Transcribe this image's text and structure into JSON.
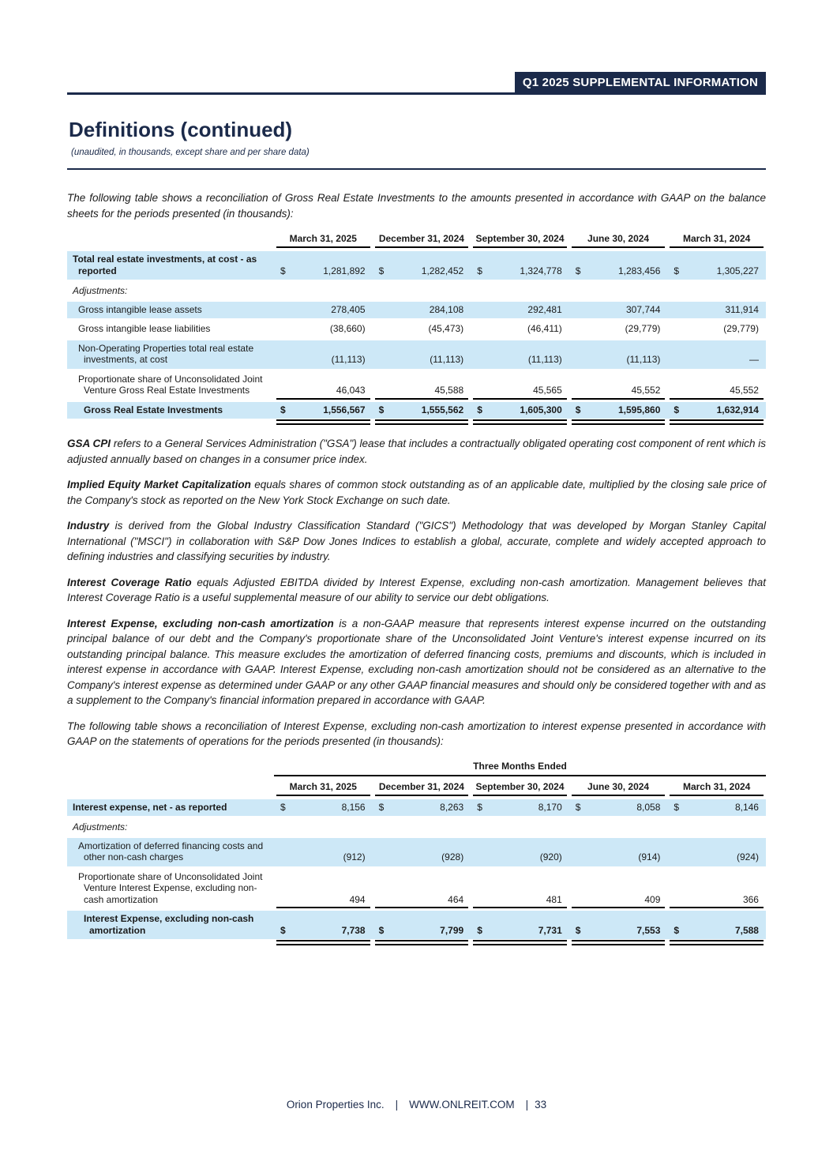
{
  "colors": {
    "navy": "#1b2a4a",
    "row_highlight": "#cde8f7"
  },
  "header": {
    "badge": "Q1 2025 SUPPLEMENTAL INFORMATION"
  },
  "title": "Definitions (continued)",
  "subtitle": "(unaudited, in thousands, except share and per share data)",
  "intro1": "The following table shows a reconciliation of Gross Real Estate Investments to the amounts presented in accordance with GAAP on the balance sheets for the periods presented (in thousands):",
  "table1": {
    "currency": "$",
    "columns": [
      "March 31, 2025",
      "December 31, 2024",
      "September 30, 2024",
      "June 30, 2024",
      "March 31, 2024"
    ],
    "rows": [
      {
        "label": "Total real estate investments, at cost - as reported",
        "bold": true,
        "dollar": true,
        "bg": "blue",
        "indent": 1,
        "values": [
          "1,281,892",
          "1,282,452",
          "1,324,778",
          "1,283,456",
          "1,305,227"
        ]
      },
      {
        "label": "Adjustments:",
        "section": true,
        "bg": "white"
      },
      {
        "label": "Gross intangible lease assets",
        "bg": "blue",
        "indent": 2,
        "values": [
          "278,405",
          "284,108",
          "292,481",
          "307,744",
          "311,914"
        ]
      },
      {
        "label": "Gross intangible lease liabilities",
        "bg": "white",
        "indent": 2,
        "values": [
          "(38,660)",
          "(45,473)",
          "(46,411)",
          "(29,779)",
          "(29,779)"
        ]
      },
      {
        "label": "Non-Operating Properties total real estate investments, at cost",
        "bg": "blue",
        "indent": 2,
        "values": [
          "(11,113)",
          "(11,113)",
          "(11,113)",
          "(11,113)",
          "—"
        ]
      },
      {
        "label": "Proportionate share of Unconsolidated Joint Venture Gross Real Estate Investments",
        "bg": "white",
        "indent": 2,
        "rule_below": true,
        "values": [
          "46,043",
          "45,588",
          "45,565",
          "45,552",
          "45,552"
        ]
      },
      {
        "label": "Gross Real Estate Investments",
        "bold": true,
        "dollar": true,
        "bg": "blue",
        "indent": 3,
        "total": true,
        "values": [
          "1,556,567",
          "1,555,562",
          "1,605,300",
          "1,595,860",
          "1,632,914"
        ]
      }
    ]
  },
  "definitions": [
    {
      "term": "GSA CPI",
      "text": "refers to a General Services Administration (\"GSA\") lease that includes a contractually obligated operating cost component of rent which is adjusted annually based on changes in a consumer price index."
    },
    {
      "term": "Implied Equity Market Capitalization",
      "text": "equals shares of common stock outstanding as of an applicable date, multiplied by the closing sale price of the Company's stock as reported on the New York Stock Exchange on such date."
    },
    {
      "term": "Industry",
      "text": "is derived from the Global Industry Classification Standard (\"GICS\") Methodology that was developed by Morgan Stanley Capital International (\"MSCI\") in collaboration with S&P Dow Jones Indices to establish a global, accurate, complete and widely accepted approach to defining industries and classifying securities by industry."
    },
    {
      "term": "Interest Coverage Ratio",
      "text": "equals Adjusted EBITDA divided by Interest Expense, excluding non-cash amortization. Management believes that Interest Coverage Ratio is a useful supplemental measure of our ability to service our debt obligations."
    },
    {
      "term": "Interest Expense, excluding non-cash amortization",
      "text": "is a non-GAAP measure that represents interest expense incurred on the outstanding principal balance of our debt and the Company's proportionate share of the Unconsolidated Joint Venture's interest expense incurred on its outstanding principal balance. This measure excludes the amortization of deferred financing costs, premiums and discounts, which is included in interest expense in accordance with GAAP. Interest Expense, excluding non-cash amortization should not be considered as an alternative to the Company's interest expense as determined under GAAP or any other GAAP financial measures and should only be considered together with and as a supplement to the Company's financial information prepared in accordance with GAAP."
    }
  ],
  "intro2": "The following table shows a reconciliation of Interest Expense, excluding non-cash amortization to interest expense presented in accordance with GAAP on the statements of operations for the periods presented (in thousands):",
  "table2": {
    "currency": "$",
    "group_header": "Three Months Ended",
    "columns": [
      "March 31, 2025",
      "December 31, 2024",
      "September 30, 2024",
      "June 30, 2024",
      "March 31, 2024"
    ],
    "rows": [
      {
        "label": "Interest expense, net - as reported",
        "bold": true,
        "dollar": true,
        "bg": "blue",
        "indent": 1,
        "values": [
          "8,156",
          "8,263",
          "8,170",
          "8,058",
          "8,146"
        ]
      },
      {
        "label": "Adjustments:",
        "section": true,
        "bg": "white"
      },
      {
        "label": "Amortization of deferred financing costs and other non-cash charges",
        "bg": "blue",
        "indent": 2,
        "values": [
          "(912)",
          "(928)",
          "(920)",
          "(914)",
          "(924)"
        ]
      },
      {
        "label": "Proportionate share of Unconsolidated Joint Venture Interest Expense, excluding non-cash amortization",
        "bg": "white",
        "indent": 2,
        "rule_below": true,
        "values": [
          "494",
          "464",
          "481",
          "409",
          "366"
        ]
      },
      {
        "label": "Interest Expense, excluding non-cash amortization",
        "bold": true,
        "dollar": true,
        "bg": "blue",
        "indent": 3,
        "total": true,
        "values": [
          "7,738",
          "7,799",
          "7,731",
          "7,553",
          "7,588"
        ]
      }
    ]
  },
  "footer": {
    "company": "Orion Properties Inc.",
    "separator": "|",
    "website": "WWW.ONLREIT.COM",
    "page_number": "33"
  }
}
